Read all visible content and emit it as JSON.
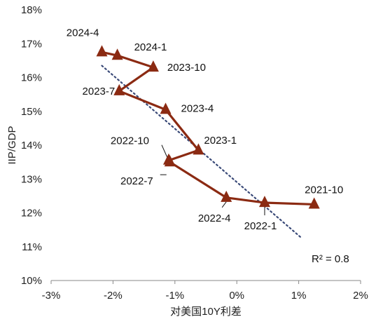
{
  "chart_data": {
    "type": "scatter",
    "xlabel": "对美国10Y利差",
    "ylabel": "IIP/GDP",
    "xlim": [
      -3,
      2
    ],
    "ylim": [
      10,
      18
    ],
    "x_ticks": [
      "-3%",
      "-2%",
      "-1%",
      "0%",
      "1%",
      "2%"
    ],
    "y_ticks": [
      "10%",
      "11%",
      "12%",
      "13%",
      "14%",
      "15%",
      "16%",
      "17%",
      "18%"
    ],
    "grid": false,
    "series": [
      {
        "marker": "triangle",
        "connected": true,
        "color": "#8B2A12",
        "points": [
          {
            "label": "2021-10",
            "x": 1.25,
            "y": 12.25
          },
          {
            "label": "2022-1",
            "x": 0.45,
            "y": 12.3
          },
          {
            "label": "2022-4",
            "x": -0.17,
            "y": 12.45
          },
          {
            "label": "2022-7",
            "x": -1.08,
            "y": 13.5
          },
          {
            "label": "2022-10",
            "x": -1.1,
            "y": 13.55
          },
          {
            "label": "2023-1",
            "x": -0.62,
            "y": 13.85
          },
          {
            "label": "2023-4",
            "x": -1.15,
            "y": 15.05
          },
          {
            "label": "2023-7",
            "x": -1.9,
            "y": 15.6
          },
          {
            "label": "2023-10",
            "x": -1.35,
            "y": 16.3
          },
          {
            "label": "2024-1",
            "x": -1.93,
            "y": 16.65
          },
          {
            "label": "2024-4",
            "x": -2.18,
            "y": 16.75
          }
        ]
      }
    ],
    "trendline": {
      "style": "dotted",
      "color": "#3a4a78",
      "from": [
        -2.18,
        16.35
      ],
      "to": [
        1.05,
        11.25
      ],
      "label": "R² = 0.8"
    }
  }
}
